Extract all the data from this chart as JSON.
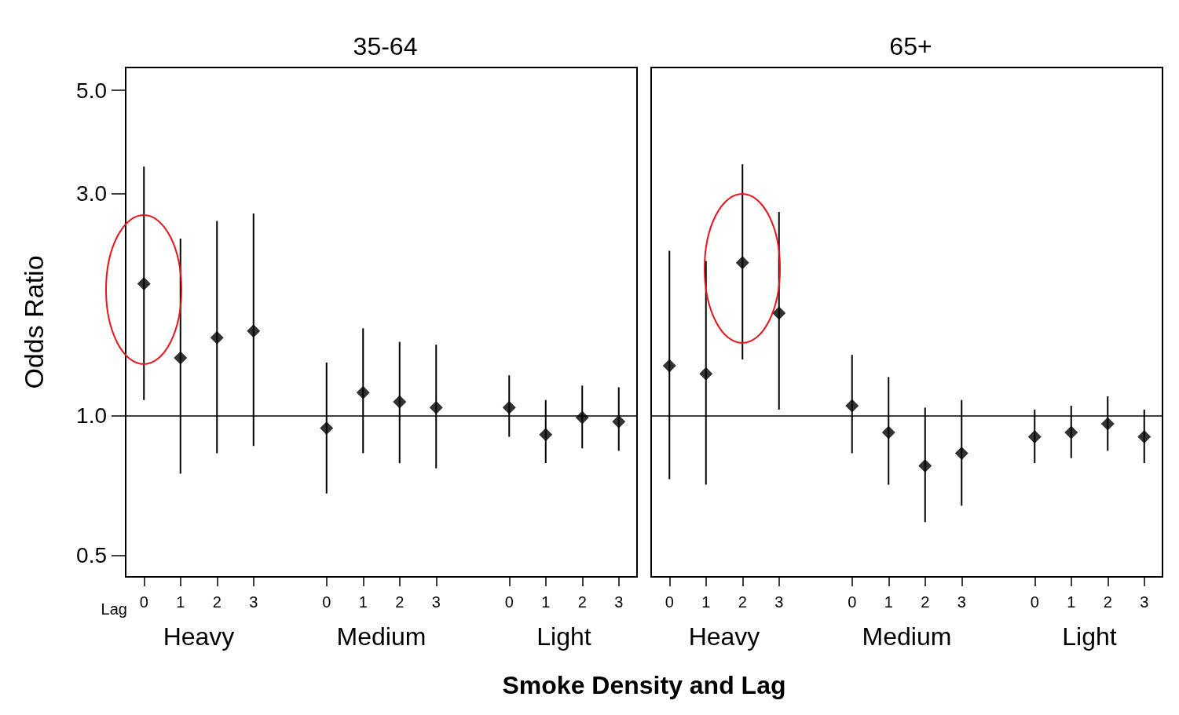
{
  "chart_data": [
    {
      "type": "scatter",
      "title": "35-64",
      "ylabel": "Odds Ratio",
      "xlabel": "Smoke Density and Lag",
      "categories": [
        "0",
        "1",
        "2",
        "3",
        null,
        "0",
        "1",
        "2",
        "3",
        null,
        "0",
        "1",
        "2",
        "3"
      ],
      "values": [
        1.92,
        1.33,
        1.47,
        1.52,
        null,
        0.94,
        1.12,
        1.07,
        1.04,
        null,
        1.04,
        0.91,
        0.99,
        0.97
      ],
      "errors": [
        [
          1.08,
          3.43
        ],
        [
          0.75,
          2.4
        ],
        [
          0.83,
          2.62
        ],
        [
          0.86,
          2.72
        ],
        null,
        [
          0.68,
          1.3
        ],
        [
          0.83,
          1.54
        ],
        [
          0.79,
          1.44
        ],
        [
          0.77,
          1.42
        ],
        null,
        [
          0.9,
          1.22
        ],
        [
          0.79,
          1.08
        ],
        [
          0.85,
          1.16
        ],
        [
          0.84,
          1.15
        ]
      ],
      "color": "#000000",
      "marker": "diamond",
      "log": true,
      "grid": false,
      "ylim": [
        0.45,
        5.6
      ],
      "yticks": [
        {
          "value": 0.5,
          "label": "0.5"
        },
        {
          "value": 1,
          "label": "1.0"
        },
        {
          "value": 3,
          "label": "3.0"
        },
        {
          "value": 5,
          "label": "5.0"
        }
      ],
      "ref_lines": [
        {
          "axis": "y",
          "value": 1,
          "color": "#000000"
        }
      ],
      "annotations": [
        "Lag",
        "Heavy",
        "Medium",
        "Light"
      ]
    },
    {
      "type": "scatter",
      "title": "65+",
      "categories": [
        "0",
        "1",
        "2",
        "3",
        null,
        "0",
        "1",
        "2",
        "3",
        null,
        "0",
        "1",
        "2",
        "3"
      ],
      "values": [
        1.28,
        1.23,
        2.13,
        1.66,
        null,
        1.05,
        0.92,
        0.78,
        0.83,
        null,
        0.9,
        0.92,
        0.96,
        0.9
      ],
      "errors": [
        [
          0.73,
          2.26
        ],
        [
          0.71,
          2.15
        ],
        [
          1.32,
          3.47
        ],
        [
          1.03,
          2.74
        ],
        null,
        [
          0.83,
          1.35
        ],
        [
          0.71,
          1.21
        ],
        [
          0.59,
          1.04
        ],
        [
          0.64,
          1.08
        ],
        null,
        [
          0.79,
          1.03
        ],
        [
          0.81,
          1.05
        ],
        [
          0.84,
          1.1
        ],
        [
          0.79,
          1.03
        ]
      ],
      "color": "#000000",
      "marker": "diamond",
      "log": true,
      "grid": false,
      "ylim": [
        0.45,
        5.6
      ],
      "tick_labels": "x",
      "ref_lines": [
        {
          "axis": "y",
          "value": 1,
          "color": "#000000"
        }
      ],
      "annotations": [
        "Heavy",
        "Medium",
        "Light"
      ]
    }
  ]
}
